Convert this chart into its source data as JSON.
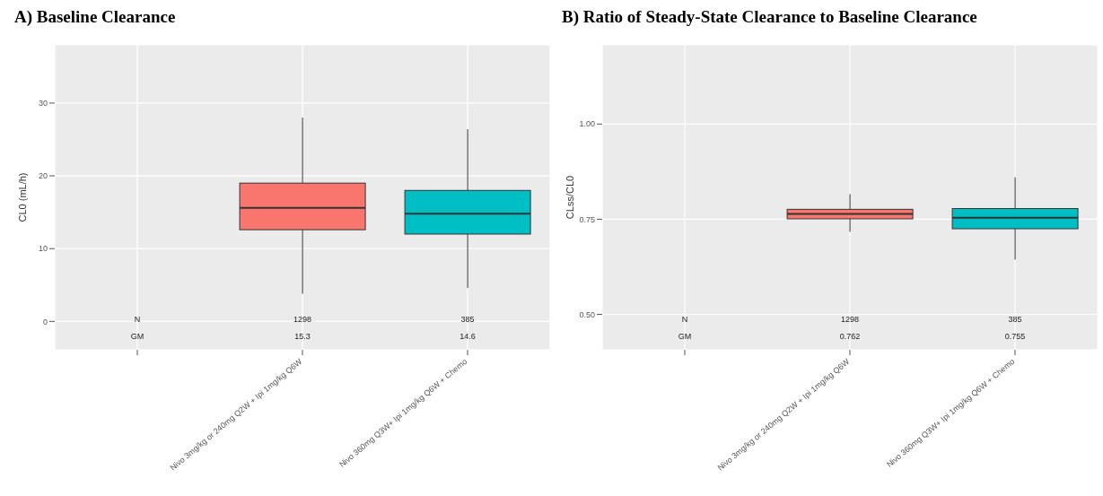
{
  "chart_data": [
    {
      "type": "box",
      "title": "A) Baseline Clearance",
      "ylabel": "CL0 (mL/h)",
      "categories": [
        null,
        "Nivo 3mg/kg or 240mg Q2W + Ipi 1mg/kg Q6W",
        "Nivo 360mg Q3W+ Ipi 1mg/kg Q6W + Chemo"
      ],
      "boxes": [
        null,
        {
          "low": 3.8,
          "q1": 12.6,
          "median": 15.6,
          "q3": 19,
          "high": 28
        },
        {
          "low": 4.6,
          "q1": 12,
          "median": 14.8,
          "q3": 18,
          "high": 26.4
        }
      ],
      "colors": [
        null,
        "#f8766d",
        "#00bfc4"
      ],
      "ylim": [
        -3.9,
        38
      ],
      "yticks": [
        0,
        10,
        20,
        30
      ],
      "grid": true,
      "annotations": [
        "N",
        "1298",
        "385",
        "GM",
        "15.3",
        "14.6"
      ]
    },
    {
      "type": "box",
      "title": "B) Ratio of Steady-State Clearance to Baseline Clearance",
      "ylabel": "CLss/CL0",
      "categories": [
        null,
        "Nivo 3mg/kg or 240mg Q2W + Ipi 1mg/kg Q6W",
        "Nivo 360mg Q3W+ Ipi 1mg/kg Q6W + Chemo"
      ],
      "boxes": [
        null,
        {
          "low": 0.717,
          "q1": 0.751,
          "median": 0.764,
          "q3": 0.776,
          "high": 0.816
        },
        {
          "low": 0.644,
          "q1": 0.725,
          "median": 0.754,
          "q3": 0.778,
          "high": 0.86
        }
      ],
      "colors": [
        null,
        "#f8766d",
        "#00bfc4"
      ],
      "ylim": [
        0.407,
        1.208
      ],
      "yticks": [
        {
          "value": 0.5,
          "label": "0.50"
        },
        {
          "value": 0.75,
          "label": "0.75"
        },
        {
          "value": 1,
          "label": "1.00"
        }
      ],
      "grid": true,
      "annotations": [
        "N",
        "1298",
        "385",
        "GM",
        "0.762",
        "0.755"
      ]
    }
  ]
}
